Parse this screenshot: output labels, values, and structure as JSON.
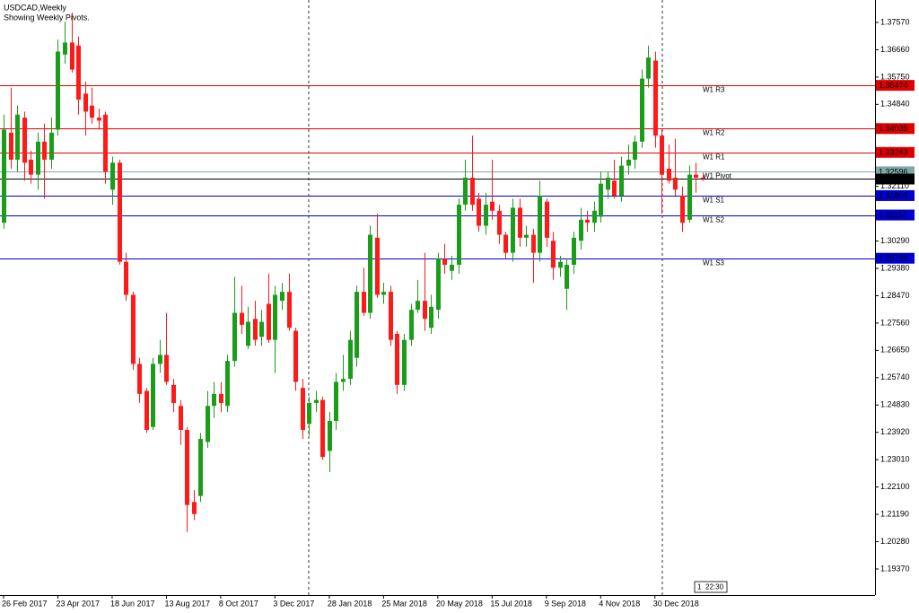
{
  "chart_data": {
    "type": "candlestick",
    "title": "USDCAD,Weekly",
    "subtitle": "Showing Weekly Pivots.",
    "categories": [
      "26 Feb 2017",
      null,
      null,
      null,
      null,
      null,
      null,
      null,
      "23 Apr 2017",
      null,
      null,
      null,
      null,
      null,
      null,
      null,
      "18 Jun 2017",
      null,
      null,
      null,
      null,
      null,
      null,
      null,
      "13 Aug 2017",
      null,
      null,
      null,
      null,
      null,
      null,
      null,
      "8 Oct 2017",
      null,
      null,
      null,
      null,
      null,
      null,
      null,
      "3 Dec 2017",
      null,
      null,
      null,
      null,
      null,
      null,
      null,
      "28 Jan 2018",
      null,
      null,
      null,
      null,
      null,
      null,
      null,
      "25 Mar 2018",
      null,
      null,
      null,
      null,
      null,
      null,
      null,
      "20 May 2018",
      null,
      null,
      null,
      null,
      null,
      null,
      null,
      "15 Jul 2018",
      null,
      null,
      null,
      null,
      null,
      null,
      null,
      "9 Sep 2018",
      null,
      null,
      null,
      null,
      null,
      null,
      null,
      "4 Nov 2018",
      null,
      null,
      null,
      null,
      null,
      null,
      null,
      "30 Dec 2018",
      null,
      null,
      null,
      null,
      null,
      null,
      null
    ],
    "open": [
      1.309,
      1.339,
      1.33,
      1.344,
      1.33,
      1.325,
      1.336,
      1.33,
      1.34,
      1.365,
      1.369,
      1.368,
      1.352,
      1.348,
      1.344,
      1.345,
      1.32,
      1.329,
      1.296,
      1.285,
      1.262,
      1.253,
      1.241,
      1.262,
      1.265,
      1.255,
      1.248,
      1.24,
      1.216,
      1.218,
      1.236,
      1.248,
      1.252,
      1.248,
      1.263,
      1.279,
      1.268,
      1.277,
      1.271,
      1.282,
      1.27,
      1.283,
      1.286,
      1.273,
      1.254,
      1.242,
      1.249,
      1.25,
      1.233,
      1.243,
      1.256,
      1.257,
      1.264,
      1.286,
      1.279,
      1.304,
      1.285,
      1.286,
      1.272,
      1.255,
      1.27,
      1.28,
      1.283,
      1.274,
      1.28,
      1.297,
      1.293,
      1.295,
      1.315,
      1.324,
      1.317,
      1.308,
      1.316,
      1.313,
      1.305,
      1.299,
      1.314,
      1.304,
      1.305,
      1.299,
      1.316,
      1.303,
      1.294,
      1.287,
      1.295,
      1.303,
      1.31,
      1.309,
      1.311,
      1.32,
      1.323,
      1.318,
      1.328,
      1.33,
      1.336,
      1.357,
      1.363,
      1.338,
      1.327,
      1.324,
      1.318,
      1.31,
      1.325,
      1.324
    ],
    "high": [
      1.345,
      1.354,
      1.348,
      1.346,
      1.333,
      1.339,
      1.342,
      1.344,
      1.37,
      1.376,
      1.379,
      1.371,
      1.356,
      1.354,
      1.347,
      1.346,
      1.331,
      1.33,
      1.299,
      1.286,
      1.264,
      1.254,
      1.264,
      1.27,
      1.279,
      1.257,
      1.25,
      1.241,
      1.22,
      1.239,
      1.253,
      1.256,
      1.256,
      1.265,
      1.291,
      1.288,
      1.281,
      1.283,
      1.28,
      1.292,
      1.288,
      1.289,
      1.292,
      1.274,
      1.257,
      1.251,
      1.253,
      1.251,
      1.246,
      1.259,
      1.265,
      1.273,
      1.288,
      1.294,
      1.308,
      1.312,
      1.289,
      1.288,
      1.273,
      1.272,
      1.282,
      1.29,
      1.299,
      1.285,
      1.299,
      1.302,
      1.298,
      1.317,
      1.33,
      1.338,
      1.319,
      1.319,
      1.33,
      1.315,
      1.306,
      1.317,
      1.317,
      1.308,
      1.307,
      1.323,
      1.317,
      1.306,
      1.298,
      1.297,
      1.306,
      1.314,
      1.313,
      1.316,
      1.326,
      1.326,
      1.33,
      1.331,
      1.335,
      1.338,
      1.36,
      1.368,
      1.366,
      1.34,
      1.335,
      1.337,
      1.321,
      1.328,
      1.329,
      1.325
    ],
    "low": [
      1.307,
      1.327,
      1.326,
      1.323,
      1.322,
      1.32,
      1.317,
      1.327,
      1.338,
      1.362,
      1.359,
      1.345,
      1.338,
      1.342,
      1.34,
      1.322,
      1.315,
      1.295,
      1.283,
      1.26,
      1.249,
      1.239,
      1.24,
      1.259,
      1.255,
      1.246,
      1.235,
      1.206,
      1.21,
      1.216,
      1.234,
      1.244,
      1.246,
      1.246,
      1.261,
      1.272,
      1.267,
      1.268,
      1.268,
      1.269,
      1.259,
      1.28,
      1.273,
      1.253,
      1.237,
      1.238,
      1.246,
      1.23,
      1.226,
      1.24,
      1.253,
      1.255,
      1.261,
      1.278,
      1.277,
      1.284,
      1.282,
      1.268,
      1.252,
      1.253,
      1.268,
      1.279,
      1.273,
      1.272,
      1.277,
      1.292,
      1.29,
      1.292,
      1.313,
      1.313,
      1.306,
      1.305,
      1.31,
      1.302,
      1.297,
      1.296,
      1.301,
      1.301,
      1.289,
      1.296,
      1.301,
      1.29,
      1.291,
      1.28,
      1.292,
      1.3,
      1.306,
      1.306,
      1.309,
      1.317,
      1.317,
      1.316,
      1.325,
      1.327,
      1.334,
      1.354,
      1.334,
      1.312,
      1.322,
      1.318,
      1.306,
      1.309,
      1.319,
      1.323
    ],
    "close": [
      1.34,
      1.33,
      1.345,
      1.329,
      1.325,
      1.336,
      1.33,
      1.339,
      1.366,
      1.369,
      1.36,
      1.35,
      1.346,
      1.344,
      1.343,
      1.326,
      1.329,
      1.296,
      1.285,
      1.262,
      1.252,
      1.24,
      1.262,
      1.265,
      1.256,
      1.249,
      1.24,
      1.215,
      1.212,
      1.237,
      1.248,
      1.252,
      1.249,
      1.263,
      1.279,
      1.275,
      1.276,
      1.27,
      1.276,
      1.27,
      1.285,
      1.286,
      1.274,
      1.256,
      1.24,
      1.249,
      1.25,
      1.231,
      1.243,
      1.256,
      1.257,
      1.27,
      1.286,
      1.279,
      1.305,
      1.285,
      1.286,
      1.27,
      1.255,
      1.27,
      1.28,
      1.283,
      1.277,
      1.281,
      1.297,
      1.295,
      1.295,
      1.315,
      1.324,
      1.315,
      1.308,
      1.315,
      1.313,
      1.305,
      1.299,
      1.314,
      1.304,
      1.305,
      1.299,
      1.318,
      1.304,
      1.294,
      1.296,
      1.295,
      1.304,
      1.31,
      1.309,
      1.313,
      1.322,
      1.324,
      1.318,
      1.328,
      1.33,
      1.336,
      1.357,
      1.364,
      1.338,
      1.325,
      1.323,
      1.32,
      1.309,
      1.325,
      1.324,
      1.32376
    ],
    "up_color": "#1a9e1a",
    "down_color": "#ff1a1a",
    "ylim": [
      1.18502,
      1.38317
    ],
    "yticks": [
      {
        "value": 1.3757,
        "label": "1.37570"
      },
      {
        "value": 1.3666,
        "label": "1.36660"
      },
      {
        "value": 1.3575,
        "label": "1.35750"
      },
      {
        "value": 1.3484,
        "label": "1.34840"
      },
      {
        "value": 1.3393,
        "label": "1.33930"
      },
      {
        "value": 1.3211,
        "label": "1.32110"
      },
      {
        "value": 1.3029,
        "label": "1.30290"
      },
      {
        "value": 1.2938,
        "label": "1.29380"
      },
      {
        "value": 1.2847,
        "label": "1.28470"
      },
      {
        "value": 1.2756,
        "label": "1.27560"
      },
      {
        "value": 1.2665,
        "label": "1.26650"
      },
      {
        "value": 1.2574,
        "label": "1.25740"
      },
      {
        "value": 1.2483,
        "label": "1.24830"
      },
      {
        "value": 1.2392,
        "label": "1.23920"
      },
      {
        "value": 1.2301,
        "label": "1.23010"
      },
      {
        "value": 1.221,
        "label": "1.22100"
      },
      {
        "value": 1.2119,
        "label": "1.21190"
      },
      {
        "value": 1.2028,
        "label": "1.20280"
      },
      {
        "value": 1.1937,
        "label": "1.19370"
      }
    ],
    "pivots": [
      {
        "name": "W1 R3",
        "value": 1.35474,
        "color": "#e00000"
      },
      {
        "name": "W1 R2",
        "value": 1.34035,
        "color": "#e00000"
      },
      {
        "name": "W1 R1",
        "value": 1.33243,
        "color": "#e00000"
      },
      {
        "name": "W1 Pivot",
        "value": 1.32596,
        "color": "#7fa8a8"
      },
      {
        "name": "W1 S1",
        "value": 1.31804,
        "color": "#0000d0"
      },
      {
        "name": "W1 S2",
        "value": 1.31157,
        "color": "#0000d0"
      },
      {
        "name": "W1 S3",
        "value": 1.29718,
        "color": "#0000d0"
      }
    ],
    "current_price": 1.32376,
    "status": [
      "1",
      "22:30"
    ]
  }
}
